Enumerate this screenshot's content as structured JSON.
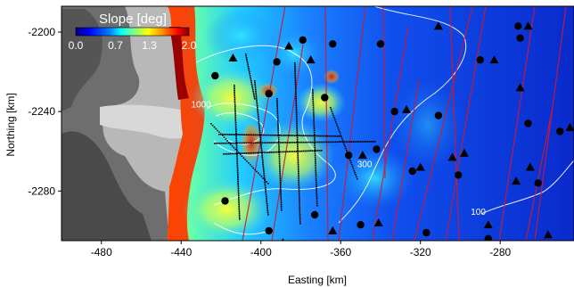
{
  "figure": {
    "xlabel": "Easting [km]",
    "ylabel": "Northing [km]",
    "colorbar_title": "Slope [deg]"
  },
  "chart_data": {
    "type": "heatmap",
    "title": "",
    "xlabel": "Easting [km]",
    "ylabel": "Northing [km]",
    "xlim": [
      -500,
      -243
    ],
    "ylim": [
      -2305,
      -2187
    ],
    "xticks": [
      -480,
      -440,
      -400,
      -360,
      -320,
      -280
    ],
    "yticks": [
      -2200,
      -2240,
      -2280
    ],
    "colorbar": {
      "label": "Slope [deg]",
      "min": 0.0,
      "max": 2.0,
      "ticks": [
        0.0,
        0.7,
        1.3,
        2.0
      ],
      "colors": [
        "#00007f",
        "#0000ff",
        "#0080ff",
        "#00ffff",
        "#80ff80",
        "#ffff00",
        "#ff8000",
        "#ff0000",
        "#7f0000"
      ]
    },
    "contour_labels": [
      {
        "value": "1000",
        "x": -430,
        "y": -2238
      },
      {
        "value": "300",
        "x": -348,
        "y": -2268
      },
      {
        "value": "100",
        "x": -291,
        "y": -2292
      }
    ],
    "circle_markers": [
      [
        -423,
        -2222
      ],
      [
        -392,
        -2215
      ],
      [
        -396,
        -2231
      ],
      [
        -379,
        -2204
      ],
      [
        -364,
        -2206
      ],
      [
        -368,
        -2233
      ],
      [
        -340,
        -2206
      ],
      [
        -333,
        -2240
      ],
      [
        -324,
        -2270
      ],
      [
        -311,
        -2242
      ],
      [
        -301,
        -2272
      ],
      [
        -290,
        -2214
      ],
      [
        -266,
        -2246
      ],
      [
        -250,
        -2250
      ],
      [
        -271,
        -2197
      ],
      [
        -261,
        -2276
      ],
      [
        -356,
        -2262
      ],
      [
        -342,
        -2259
      ],
      [
        -373,
        -2292
      ],
      [
        -418,
        -2285
      ],
      [
        -396,
        -2300
      ],
      [
        -350,
        -2297
      ],
      [
        -317,
        -2301
      ],
      [
        -286,
        -2304
      ],
      [
        -270,
        -2203
      ]
    ],
    "triangle_markers": [
      [
        -414,
        -2213
      ],
      [
        -386,
        -2207
      ],
      [
        -375,
        -2214
      ],
      [
        -327,
        -2239
      ],
      [
        -311,
        -2197
      ],
      [
        -298,
        -2261
      ],
      [
        -304,
        -2263
      ],
      [
        -270,
        -2228
      ],
      [
        -245,
        -2248
      ],
      [
        -272,
        -2275
      ],
      [
        -283,
        -2214
      ],
      [
        -320,
        -2268
      ],
      [
        -349,
        -2262
      ],
      [
        -364,
        -2300
      ],
      [
        -341,
        -2296
      ],
      [
        -286,
        -2297
      ],
      [
        -266,
        -2197
      ],
      [
        -256,
        -2302
      ],
      [
        -389,
        -2306
      ],
      [
        -265,
        -2268
      ]
    ]
  }
}
